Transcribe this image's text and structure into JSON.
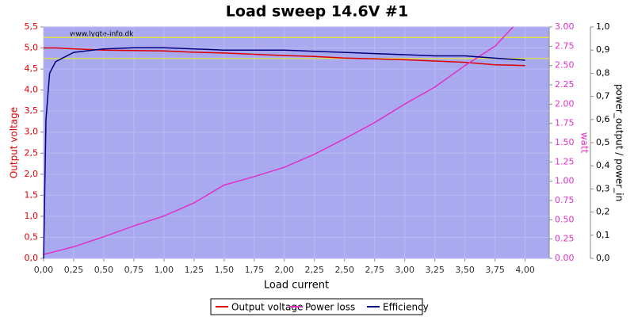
{
  "chart_data": {
    "type": "line",
    "title": "Load sweep 14.6V #1",
    "watermark": "www.lygte-info.dk",
    "x_label": "Load current",
    "y_label": "Output voltage",
    "y2_label": "watt",
    "y3_label": "power_output / power_in",
    "x": [
      0,
      0.02,
      0.05,
      0.1,
      0.25,
      0.5,
      0.75,
      1,
      1.25,
      1.5,
      1.75,
      2,
      2.25,
      2.5,
      2.75,
      3,
      3.25,
      3.5,
      3.75,
      3.9,
      4.0
    ],
    "series": [
      {
        "name": "Output voltage",
        "color": "#dd0000",
        "axis": "y",
        "values": [
          5.0,
          5.0,
          5.0,
          5.0,
          4.98,
          4.95,
          4.94,
          4.93,
          4.9,
          4.88,
          4.85,
          4.82,
          4.8,
          4.76,
          4.74,
          4.72,
          4.69,
          4.66,
          4.6,
          4.59,
          4.58
        ]
      },
      {
        "name": "Power loss",
        "color": "#e030c8",
        "axis": "y2",
        "values": [
          0.05,
          0.06,
          0.07,
          0.09,
          0.15,
          0.28,
          0.42,
          0.55,
          0.72,
          0.95,
          1.06,
          1.18,
          1.35,
          1.55,
          1.76,
          2.0,
          2.22,
          2.5,
          2.75,
          3.0,
          null
        ]
      },
      {
        "name": "Efficiency",
        "color": "#000080",
        "axis": "y3",
        "values": [
          0.0,
          0.6,
          0.8,
          0.85,
          0.89,
          0.905,
          0.91,
          0.91,
          0.905,
          0.9,
          0.9,
          0.9,
          0.895,
          0.89,
          0.885,
          0.88,
          0.875,
          0.875,
          0.865,
          0.86,
          0.856
        ]
      }
    ],
    "reference_lines": [
      5.25,
      4.75
    ],
    "reference_color": "#e8e830",
    "xlim": [
      0,
      4.2
    ],
    "xticks": [
      {
        "value": 0,
        "label": "0,00"
      },
      {
        "value": 0.25,
        "label": "0,25"
      },
      {
        "value": 0.5,
        "label": "0,50"
      },
      {
        "value": 0.75,
        "label": "0,75"
      },
      {
        "value": 1,
        "label": "1,00"
      },
      {
        "value": 1.25,
        "label": "1,25"
      },
      {
        "value": 1.5,
        "label": "1,50"
      },
      {
        "value": 1.75,
        "label": "1,75"
      },
      {
        "value": 2,
        "label": "2,00"
      },
      {
        "value": 2.25,
        "label": "2,25"
      },
      {
        "value": 2.5,
        "label": "2,50"
      },
      {
        "value": 2.75,
        "label": "2,75"
      },
      {
        "value": 3,
        "label": "3,00"
      },
      {
        "value": 3.25,
        "label": "3,25"
      },
      {
        "value": 3.5,
        "label": "3,50"
      },
      {
        "value": 3.75,
        "label": "3,75"
      },
      {
        "value": 4,
        "label": "4,00"
      }
    ],
    "ylim": [
      0,
      5.5
    ],
    "yticks": [
      {
        "value": 0,
        "label": "0,0"
      },
      {
        "value": 0.5,
        "label": "0,5"
      },
      {
        "value": 1,
        "label": "1,0"
      },
      {
        "value": 1.5,
        "label": "1,5"
      },
      {
        "value": 2,
        "label": "2,0"
      },
      {
        "value": 2.5,
        "label": "2,5"
      },
      {
        "value": 3,
        "label": "3,0"
      },
      {
        "value": 3.5,
        "label": "3,5"
      },
      {
        "value": 4,
        "label": "4,0"
      },
      {
        "value": 4.5,
        "label": "4,5"
      },
      {
        "value": 5,
        "label": "5,0"
      },
      {
        "value": 5.5,
        "label": "5,5"
      }
    ],
    "y2lim": [
      0,
      3
    ],
    "y2ticks": [
      {
        "value": 0,
        "label": "0.00"
      },
      {
        "value": 0.25,
        "label": "0.25"
      },
      {
        "value": 0.5,
        "label": "0.50"
      },
      {
        "value": 0.75,
        "label": "0.75"
      },
      {
        "value": 1,
        "label": "1.00"
      },
      {
        "value": 1.25,
        "label": "1.25"
      },
      {
        "value": 1.5,
        "label": "1.50"
      },
      {
        "value": 1.75,
        "label": "1.75"
      },
      {
        "value": 2,
        "label": "2.00"
      },
      {
        "value": 2.25,
        "label": "2.25"
      },
      {
        "value": 2.5,
        "label": "2.50"
      },
      {
        "value": 2.75,
        "label": "2.75"
      },
      {
        "value": 3,
        "label": "3.00"
      }
    ],
    "y3lim": [
      0,
      1
    ],
    "y3ticks": [
      {
        "value": 0,
        "label": "0,0"
      },
      {
        "value": 0.1,
        "label": "0,1"
      },
      {
        "value": 0.2,
        "label": "0,2"
      },
      {
        "value": 0.3,
        "label": "0,3"
      },
      {
        "value": 0.4,
        "label": "0,4"
      },
      {
        "value": 0.5,
        "label": "0,5"
      },
      {
        "value": 0.6,
        "label": "0,6"
      },
      {
        "value": 0.7,
        "label": "0,7"
      },
      {
        "value": 0.8,
        "label": "0,8"
      },
      {
        "value": 0.9,
        "label": "0,9"
      },
      {
        "value": 1,
        "label": "1,0"
      }
    ],
    "grid": true,
    "plot_background": "#a9a9ef"
  }
}
